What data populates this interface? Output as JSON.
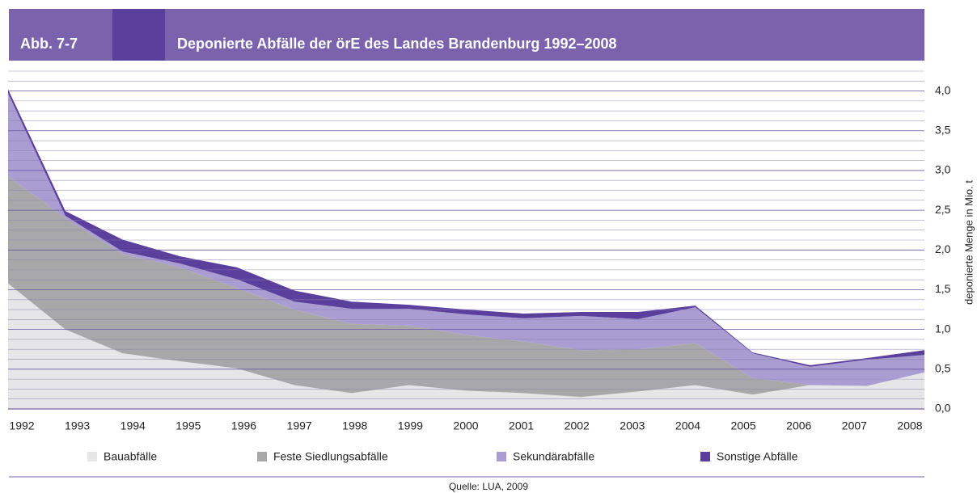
{
  "chart_data": {
    "type": "stacked_area",
    "label": "Abb. 7-7",
    "title": "Deponierte Abfälle der örE des Landes Brandenburg 1992–2008",
    "y_label": "deponierte Menge in Mio. t",
    "source": "Quelle: LUA, 2009",
    "x": [
      1992,
      1993,
      1994,
      1995,
      1996,
      1997,
      1998,
      1999,
      2000,
      2001,
      2002,
      2003,
      2004,
      2005,
      2006,
      2007,
      2008
    ],
    "xlim": [
      1992,
      2008
    ],
    "series": [
      {
        "name": "Bauabfälle",
        "color": "#e6e6e8",
        "values": [
          1.58,
          1.0,
          0.7,
          0.6,
          0.51,
          0.3,
          0.2,
          0.3,
          0.23,
          0.2,
          0.15,
          0.22,
          0.3,
          0.18,
          0.3,
          0.29,
          0.46
        ]
      },
      {
        "name": "Feste Siedlungsabfälle",
        "color": "#a8a8aa",
        "values": [
          1.35,
          1.4,
          1.25,
          1.18,
          1.01,
          0.95,
          0.87,
          0.75,
          0.7,
          0.65,
          0.59,
          0.53,
          0.53,
          0.21,
          0,
          0,
          0
        ]
      },
      {
        "name": "Sekundärabfälle",
        "color": "#a99dd1",
        "values": [
          1.04,
          0.03,
          0.03,
          0.05,
          0.11,
          0.1,
          0.19,
          0.21,
          0.26,
          0.29,
          0.43,
          0.38,
          0.45,
          0.31,
          0.23,
          0.33,
          0.22
        ]
      },
      {
        "name": "Sonstige Abfälle",
        "color": "#5b3f9d",
        "values": [
          0.05,
          0.06,
          0.15,
          0.09,
          0.15,
          0.14,
          0.09,
          0.05,
          0.06,
          0.06,
          0.05,
          0.09,
          0.02,
          0.01,
          0.02,
          0.02,
          0.06
        ]
      }
    ],
    "ylim": [
      0,
      4.25
    ],
    "yticks": [
      {
        "value": 0,
        "label": "0,0"
      },
      {
        "value": 0.5,
        "label": "0,5"
      },
      {
        "value": 1,
        "label": "1,0"
      },
      {
        "value": 1.5,
        "label": "1,5"
      },
      {
        "value": 2,
        "label": "2,0"
      },
      {
        "value": 2.5,
        "label": "2,5"
      },
      {
        "value": 3,
        "label": "3,0"
      },
      {
        "value": 3.5,
        "label": "3,5"
      },
      {
        "value": 4,
        "label": "4,0"
      }
    ],
    "minor_yticks": [
      0.125,
      0.25,
      0.375,
      0.625,
      0.75,
      0.875,
      1.125,
      1.25,
      1.375,
      1.625,
      1.75,
      1.875,
      2.125,
      2.25,
      2.375,
      2.625,
      2.75,
      2.875,
      3.125,
      3.25,
      3.375,
      3.625,
      3.75,
      3.875,
      4.125,
      4.25
    ],
    "grid": true
  }
}
